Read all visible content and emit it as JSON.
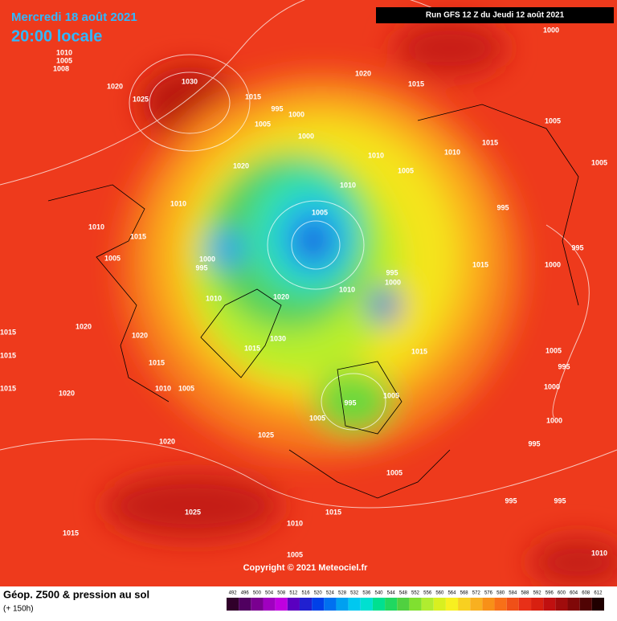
{
  "header": {
    "date": "Mercredi 18 août 2021",
    "time": "20:00 locale",
    "run": "Run GFS 12 Z du Jeudi 12 août 2021"
  },
  "footer": {
    "copyright": "Copyright © 2021 Meteociel.fr",
    "title": "Géop. Z500 & pression au sol",
    "lead": "(+ 150h)",
    "scale": [
      492,
      496,
      500,
      504,
      508,
      512,
      516,
      520,
      524,
      528,
      532,
      536,
      540,
      544,
      548,
      552,
      556,
      560,
      564,
      568,
      572,
      576,
      580,
      584,
      588,
      592,
      596,
      600,
      604,
      608,
      612
    ]
  },
  "map": {
    "labels": [
      1030,
      1025,
      1020,
      1010,
      1005,
      1008,
      1020,
      1015,
      1015,
      995,
      1000,
      1005,
      1000,
      1020,
      1010,
      1005,
      1010,
      1015,
      1005,
      1005,
      1010,
      1010,
      1015,
      1005,
      1005,
      1010,
      995,
      1015,
      1000,
      995,
      995,
      1000,
      1010,
      1020,
      1010,
      1000,
      995,
      1020,
      1020,
      1030,
      1015,
      1015,
      1015,
      1015,
      1015,
      1020,
      1010,
      1005,
      1015,
      1000,
      1000,
      995,
      1005,
      995,
      1005,
      1025,
      1020,
      1025,
      1015,
      1005,
      995,
      995,
      1015,
      1010,
      1005,
      1010,
      1005,
      1000,
      1005,
      995
    ]
  }
}
